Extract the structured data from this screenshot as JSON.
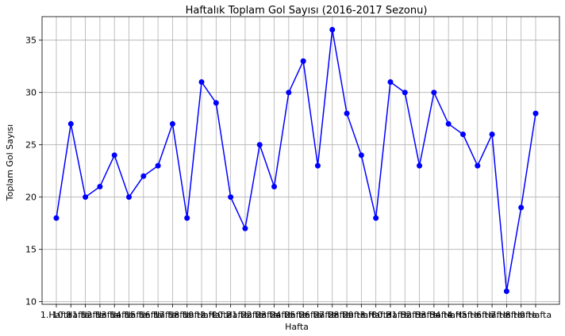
{
  "chart_data": {
    "type": "line",
    "title": "Haftalık Toplam Gol Sayısı (2016-2017 Sezonu)",
    "xlabel": "Hafta",
    "ylabel": "Toplam Gol Sayısı",
    "categories": [
      "1.Hafta",
      "10.Hafta",
      "11.Hafta",
      "12.Hafta",
      "13.Hafta",
      "14.Hafta",
      "15.Hafta",
      "16.Hafta",
      "17.Hafta",
      "18.Hafta",
      "19.Hafta",
      "2.Hafta",
      "20.Hafta",
      "21.Hafta",
      "22.Hafta",
      "23.Hafta",
      "24.Hafta",
      "25.Hafta",
      "26.Hafta",
      "27.Hafta",
      "28.Hafta",
      "29.Hafta",
      "3.Hafta",
      "30.Hafta",
      "31.Hafta",
      "32.Hafta",
      "33.Hafta",
      "34.Hafta",
      "4.Hafta",
      "5.Hafta",
      "6.Hafta",
      "7.Hafta",
      "8.Hafta",
      "9.Hafta"
    ],
    "values": [
      18,
      27,
      20,
      21,
      24,
      20,
      22,
      23,
      27,
      18,
      31,
      29,
      20,
      17,
      25,
      21,
      30,
      33,
      23,
      36,
      28,
      24,
      18,
      31,
      30,
      23,
      30,
      27,
      26,
      23,
      26,
      11,
      19,
      28
    ],
    "yticks": [
      10,
      15,
      20,
      25,
      30,
      35
    ],
    "ylim": [
      9.75,
      37.25
    ],
    "grid": true,
    "color": "#0000ff",
    "marker": "circle"
  }
}
